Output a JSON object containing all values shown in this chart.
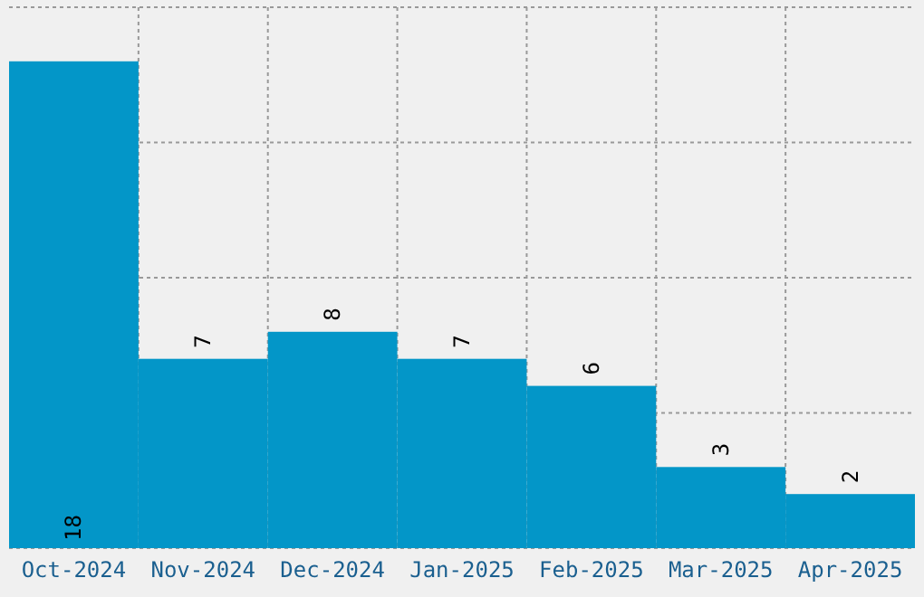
{
  "chart_data": {
    "type": "bar",
    "categories": [
      "Oct-2024",
      "Nov-2024",
      "Dec-2024",
      "Jan-2025",
      "Feb-2025",
      "Mar-2025",
      "Apr-2025"
    ],
    "values": [
      18,
      7,
      8,
      7,
      6,
      3,
      2
    ],
    "color": "#0396c8",
    "ylim": [
      0,
      20
    ],
    "yticks": [
      {
        "value": 0,
        "label": null
      },
      {
        "value": 5,
        "label": null
      },
      {
        "value": 10,
        "label": null
      },
      {
        "value": 15,
        "label": null
      },
      {
        "value": 20,
        "label": null
      }
    ],
    "tick_labels": "x",
    "grid": true,
    "data_labels": true
  }
}
